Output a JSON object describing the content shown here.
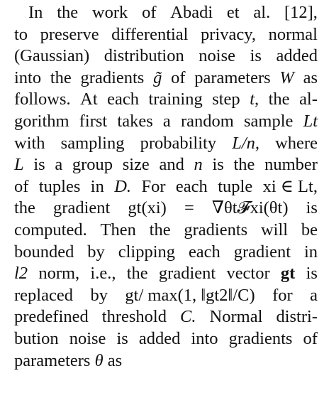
{
  "paragraph": {
    "lines": [
      [
        "In",
        "the",
        "work",
        "of",
        "Abadi",
        "et",
        "al.",
        "[12],"
      ],
      [
        "to",
        "preserve",
        "differential",
        "privacy,",
        "normal"
      ],
      [
        "(Gaussian)",
        "distribution",
        "noise",
        "is",
        "added"
      ],
      [
        "into",
        "the",
        "gradients",
        "g̃",
        "of",
        "parameters",
        "W",
        "as"
      ],
      [
        "follows.",
        "At",
        "each",
        "training",
        "step",
        "t,",
        "the",
        "al-"
      ],
      [
        "gorithm",
        "first",
        "takes",
        "a",
        "random",
        "sample",
        "Lt"
      ],
      [
        "with",
        "sampling",
        "probability",
        "L/n,",
        "where"
      ],
      [
        "L",
        "is",
        "a",
        "group",
        "size",
        "and",
        "n",
        "is",
        "the",
        "number"
      ],
      [
        "of",
        "tuples",
        "in",
        "D.",
        "For",
        "each",
        "tuple",
        "xi ∈ Lt,"
      ],
      [
        "the",
        "gradient",
        "gt(xi)",
        "=",
        "∇θt𝓕xi(θt)",
        "is"
      ],
      [
        "computed.",
        "Then",
        "the",
        "gradients",
        "will",
        "be"
      ],
      [
        "bounded",
        "by",
        "clipping",
        "each",
        "gradient",
        "in"
      ],
      [
        "l2",
        "norm,",
        "i.e.,",
        "the",
        "gradient",
        "vector",
        "gt",
        "is"
      ],
      [
        "replaced",
        "by",
        "gt/ max(1, ‖gt2‖/C)",
        "for",
        "a"
      ],
      [
        "predefined",
        "threshold",
        "C.",
        "Normal",
        "distri-"
      ],
      [
        "bution",
        "noise",
        "is",
        "added",
        "into",
        "gradients",
        "of"
      ],
      [
        "parameters",
        "θ",
        "as"
      ]
    ]
  }
}
